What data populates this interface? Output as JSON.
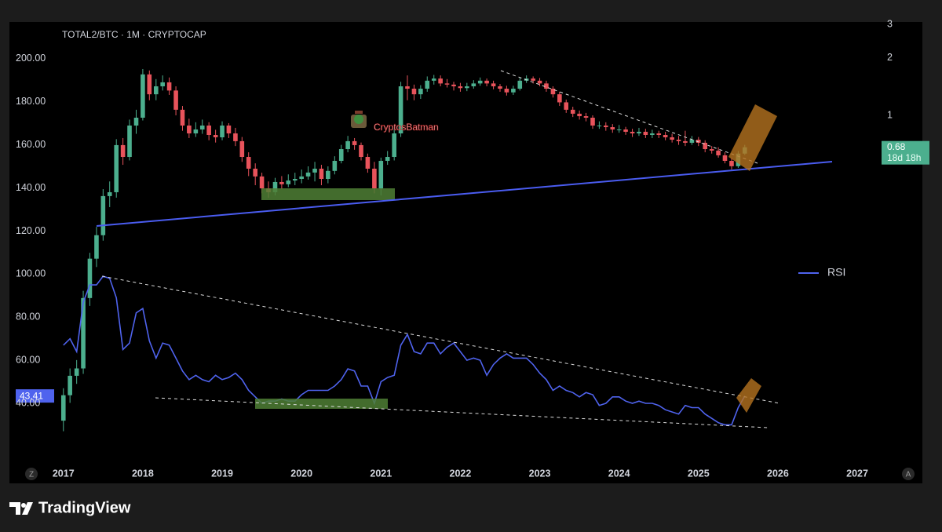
{
  "chart_data": {
    "type": "candlestick",
    "title": "TOTAL2/BTC · 1M · CRYPTOCAP",
    "watermark": "CryptosBatman",
    "x": [
      2017,
      2017.083,
      2017.167,
      2017.25,
      2017.333,
      2017.417,
      2017.5,
      2017.583,
      2017.667,
      2017.75,
      2017.833,
      2017.917,
      2018,
      2018.083,
      2018.167,
      2018.25,
      2018.333,
      2018.417,
      2018.5,
      2018.583,
      2018.667,
      2018.75,
      2018.833,
      2018.917,
      2019,
      2019.083,
      2019.167,
      2019.25,
      2019.333,
      2019.417,
      2019.5,
      2019.583,
      2019.667,
      2019.75,
      2019.833,
      2019.917,
      2020,
      2020.083,
      2020.167,
      2020.25,
      2020.333,
      2020.417,
      2020.5,
      2020.583,
      2020.667,
      2020.75,
      2020.833,
      2020.917,
      2021,
      2021.083,
      2021.167,
      2021.25,
      2021.333,
      2021.417,
      2021.5,
      2021.583,
      2021.667,
      2021.75,
      2021.833,
      2021.917,
      2022,
      2022.083,
      2022.167,
      2022.25,
      2022.333,
      2022.417,
      2022.5,
      2022.583,
      2022.667,
      2022.75,
      2022.833,
      2022.917,
      2023,
      2023.083,
      2023.167,
      2023.25,
      2023.333,
      2023.417,
      2023.5,
      2023.583,
      2023.667,
      2023.75,
      2023.833,
      2023.917,
      2024,
      2024.083,
      2024.167,
      2024.25,
      2024.333,
      2024.417,
      2024.5,
      2024.583,
      2024.667,
      2024.75,
      2024.833,
      2024.917,
      2025,
      2025.083,
      2025.167,
      2025.25,
      2025.333,
      2025.417,
      2025.5,
      2025.583
    ],
    "price": {
      "axis": "y2",
      "countdown": "18d 18h",
      "up_color": "#4caf8e",
      "down_color": "#e8535b",
      "open": [
        0.025,
        0.034,
        0.043,
        0.047,
        0.11,
        0.177,
        0.235,
        0.377,
        0.395,
        0.698,
        0.605,
        0.884,
        0.972,
        1.64,
        1.29,
        1.42,
        1.49,
        1.35,
        1.07,
        0.884,
        0.804,
        0.843,
        0.884,
        0.789,
        0.767,
        0.884,
        0.804,
        0.732,
        0.605,
        0.525,
        0.478,
        0.414,
        0.395,
        0.447,
        0.435,
        0.455,
        0.464,
        0.478,
        0.501,
        0.525,
        0.464,
        0.511,
        0.577,
        0.665,
        0.732,
        0.698,
        0.605,
        0.525,
        0.414,
        0.577,
        0.605,
        0.804,
        1.42,
        1.38,
        1.29,
        1.38,
        1.52,
        1.56,
        1.47,
        1.45,
        1.42,
        1.39,
        1.42,
        1.47,
        1.52,
        1.47,
        1.42,
        1.38,
        1.32,
        1.38,
        1.52,
        1.56,
        1.52,
        1.47,
        1.38,
        1.29,
        1.17,
        1.07,
        1.02,
        0.99,
        0.972,
        0.884,
        0.884,
        0.867,
        0.843,
        0.843,
        0.82,
        0.804,
        0.82,
        0.789,
        0.804,
        0.789,
        0.767,
        0.745,
        0.732,
        0.718,
        0.745,
        0.718,
        0.665,
        0.653,
        0.617,
        0.577,
        0.541,
        0.63
      ],
      "high": [
        0.037,
        0.047,
        0.052,
        0.12,
        0.19,
        0.26,
        0.41,
        0.45,
        0.75,
        0.76,
        0.95,
        1.07,
        1.75,
        1.72,
        1.55,
        1.62,
        1.58,
        1.42,
        1.12,
        0.96,
        0.92,
        0.95,
        0.92,
        0.84,
        0.93,
        0.91,
        0.86,
        0.77,
        0.64,
        0.56,
        0.5,
        0.45,
        0.47,
        0.48,
        0.49,
        0.5,
        0.52,
        0.54,
        0.57,
        0.55,
        0.54,
        0.61,
        0.7,
        0.78,
        0.76,
        0.72,
        0.63,
        0.57,
        0.6,
        0.65,
        0.85,
        1.5,
        1.62,
        1.45,
        1.44,
        1.6,
        1.63,
        1.62,
        1.55,
        1.5,
        1.48,
        1.48,
        1.53,
        1.58,
        1.56,
        1.52,
        1.46,
        1.43,
        1.43,
        1.57,
        1.62,
        1.6,
        1.57,
        1.52,
        1.42,
        1.33,
        1.21,
        1.11,
        1.06,
        1.03,
        1.0,
        0.93,
        0.92,
        0.9,
        0.89,
        0.87,
        0.85,
        0.86,
        0.85,
        0.84,
        0.83,
        0.82,
        0.8,
        0.78,
        0.83,
        0.78,
        0.77,
        0.74,
        0.69,
        0.68,
        0.64,
        0.6,
        0.65,
        0.7
      ],
      "low": [
        0.022,
        0.031,
        0.039,
        0.044,
        0.1,
        0.16,
        0.22,
        0.33,
        0.37,
        0.55,
        0.58,
        0.8,
        0.94,
        1.2,
        1.2,
        1.35,
        1.28,
        1.0,
        0.83,
        0.76,
        0.77,
        0.8,
        0.74,
        0.72,
        0.74,
        0.76,
        0.69,
        0.57,
        0.48,
        0.43,
        0.39,
        0.37,
        0.38,
        0.41,
        0.42,
        0.43,
        0.44,
        0.46,
        0.45,
        0.43,
        0.44,
        0.49,
        0.56,
        0.64,
        0.66,
        0.58,
        0.5,
        0.39,
        0.38,
        0.55,
        0.58,
        0.77,
        1.2,
        1.2,
        1.22,
        1.33,
        1.45,
        1.42,
        1.4,
        1.35,
        1.33,
        1.34,
        1.38,
        1.43,
        1.42,
        1.37,
        1.33,
        1.27,
        1.28,
        1.35,
        1.48,
        1.47,
        1.42,
        1.33,
        1.24,
        1.12,
        1.03,
        0.98,
        0.95,
        0.93,
        0.85,
        0.85,
        0.83,
        0.81,
        0.81,
        0.79,
        0.77,
        0.78,
        0.76,
        0.76,
        0.76,
        0.74,
        0.72,
        0.7,
        0.69,
        0.7,
        0.69,
        0.64,
        0.63,
        0.6,
        0.56,
        0.52,
        0.53,
        0.62
      ],
      "close": [
        0.034,
        0.043,
        0.047,
        0.11,
        0.177,
        0.235,
        0.377,
        0.395,
        0.698,
        0.605,
        0.884,
        0.972,
        1.64,
        1.29,
        1.42,
        1.49,
        1.35,
        1.07,
        0.884,
        0.804,
        0.843,
        0.884,
        0.789,
        0.767,
        0.884,
        0.804,
        0.732,
        0.605,
        0.525,
        0.478,
        0.414,
        0.395,
        0.447,
        0.435,
        0.455,
        0.464,
        0.478,
        0.501,
        0.525,
        0.464,
        0.511,
        0.577,
        0.665,
        0.732,
        0.698,
        0.605,
        0.525,
        0.414,
        0.577,
        0.605,
        0.804,
        1.42,
        1.38,
        1.29,
        1.38,
        1.52,
        1.56,
        1.47,
        1.45,
        1.42,
        1.39,
        1.42,
        1.47,
        1.52,
        1.47,
        1.42,
        1.38,
        1.32,
        1.38,
        1.52,
        1.56,
        1.52,
        1.47,
        1.38,
        1.29,
        1.17,
        1.07,
        1.02,
        0.99,
        0.972,
        0.884,
        0.884,
        0.867,
        0.843,
        0.843,
        0.82,
        0.804,
        0.82,
        0.789,
        0.804,
        0.789,
        0.767,
        0.745,
        0.732,
        0.718,
        0.745,
        0.718,
        0.665,
        0.653,
        0.617,
        0.577,
        0.541,
        0.63,
        0.68
      ]
    },
    "series": [
      {
        "name": "RSI",
        "color": "#4f63ee",
        "values": [
          67,
          70,
          64,
          87,
          95,
          95,
          99,
          98,
          89,
          65,
          68,
          82,
          84,
          69,
          61,
          68,
          67,
          61,
          55,
          51,
          53,
          51,
          50,
          53,
          51,
          52,
          54,
          51,
          46,
          43,
          40,
          41,
          41,
          42,
          41,
          41,
          44,
          46,
          46,
          46,
          46,
          48,
          51,
          56,
          55,
          48,
          48,
          40,
          50,
          52,
          53,
          67,
          72,
          64,
          63,
          68,
          68,
          63,
          66,
          68,
          64,
          60,
          61,
          60,
          53,
          58,
          61,
          63,
          61,
          61,
          61,
          58,
          54,
          51,
          46,
          48,
          46,
          45,
          43,
          45,
          44,
          39,
          40,
          43,
          43,
          41,
          40,
          41,
          40,
          40,
          39,
          37,
          36,
          35,
          39,
          38,
          38,
          35,
          33,
          31,
          30,
          30,
          38,
          43.41
        ]
      }
    ],
    "xlim": [
      2016.32,
      2027.82
    ],
    "xticks": [
      2017,
      2018,
      2019,
      2020,
      2021,
      2022,
      2023,
      2024,
      2025,
      2026,
      2027
    ],
    "ylim": [
      12.3,
      217.1
    ],
    "yticks": [
      {
        "value": 40,
        "label": "40.00"
      },
      {
        "value": 60,
        "label": "60.00"
      },
      {
        "value": 80,
        "label": "80.00"
      },
      {
        "value": 100,
        "label": "100.00"
      },
      {
        "value": 120,
        "label": "120.00"
      },
      {
        "value": 140,
        "label": "140.00"
      },
      {
        "value": 160,
        "label": "160.00"
      },
      {
        "value": 180,
        "label": "180.00"
      },
      {
        "value": 200,
        "label": "200.00"
      }
    ],
    "y2lim": [
      0.015,
      3.09
    ],
    "y2ticks": [
      1,
      2,
      3
    ],
    "y2_log": true,
    "controls": [
      "Z",
      "A"
    ]
  },
  "brand": "TradingView"
}
